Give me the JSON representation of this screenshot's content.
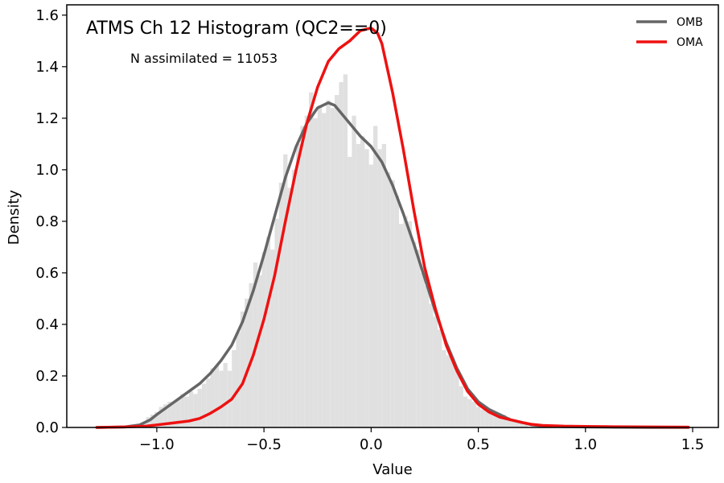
{
  "chart_data": {
    "type": "line",
    "title": "ATMS Ch 12 Histogram (QC2==0)",
    "annotation": "N assimilated = 11053",
    "xlabel": "Value",
    "ylabel": "Density",
    "xlim": [
      -1.42,
      1.62
    ],
    "ylim": [
      0,
      1.64
    ],
    "xticks": [
      -1.0,
      -0.5,
      0.0,
      0.5,
      1.0,
      1.5
    ],
    "xtick_labels": [
      "−1.0",
      "−0.5",
      "0.0",
      "0.5",
      "1.0",
      "1.5"
    ],
    "yticks": [
      0.0,
      0.2,
      0.4,
      0.6,
      0.8,
      1.0,
      1.2,
      1.4,
      1.6
    ],
    "ytick_labels": [
      "0.0",
      "0.2",
      "0.4",
      "0.6",
      "0.8",
      "1.0",
      "1.2",
      "1.4",
      "1.6"
    ],
    "grid": false,
    "legend_position": "top-right",
    "histogram": {
      "color": "#e0e0e0",
      "bin_width": 0.02,
      "bins": [
        [
          -1.06,
          0.02
        ],
        [
          -1.04,
          0.04
        ],
        [
          -1.02,
          0.05
        ],
        [
          -1.0,
          0.06
        ],
        [
          -0.98,
          0.08
        ],
        [
          -0.96,
          0.09
        ],
        [
          -0.94,
          0.1
        ],
        [
          -0.92,
          0.1
        ],
        [
          -0.9,
          0.11
        ],
        [
          -0.88,
          0.13
        ],
        [
          -0.86,
          0.12
        ],
        [
          -0.84,
          0.14
        ],
        [
          -0.82,
          0.13
        ],
        [
          -0.8,
          0.15
        ],
        [
          -0.78,
          0.17
        ],
        [
          -0.76,
          0.19
        ],
        [
          -0.74,
          0.23
        ],
        [
          -0.72,
          0.24
        ],
        [
          -0.7,
          0.22
        ],
        [
          -0.68,
          0.25
        ],
        [
          -0.66,
          0.22
        ],
        [
          -0.64,
          0.3
        ],
        [
          -0.62,
          0.37
        ],
        [
          -0.6,
          0.45
        ],
        [
          -0.58,
          0.5
        ],
        [
          -0.56,
          0.56
        ],
        [
          -0.54,
          0.64
        ],
        [
          -0.52,
          0.59
        ],
        [
          -0.5,
          0.68
        ],
        [
          -0.48,
          0.74
        ],
        [
          -0.46,
          0.69
        ],
        [
          -0.44,
          0.81
        ],
        [
          -0.42,
          0.95
        ],
        [
          -0.4,
          1.06
        ],
        [
          -0.38,
          0.93
        ],
        [
          -0.36,
          1.0
        ],
        [
          -0.34,
          1.1
        ],
        [
          -0.32,
          1.17
        ],
        [
          -0.3,
          1.21
        ],
        [
          -0.28,
          1.3
        ],
        [
          -0.26,
          1.2
        ],
        [
          -0.24,
          1.25
        ],
        [
          -0.22,
          1.22
        ],
        [
          -0.2,
          1.27
        ],
        [
          -0.18,
          1.24
        ],
        [
          -0.16,
          1.29
        ],
        [
          -0.14,
          1.34
        ],
        [
          -0.12,
          1.37
        ],
        [
          -0.1,
          1.05
        ],
        [
          -0.08,
          1.21
        ],
        [
          -0.06,
          1.1
        ],
        [
          -0.04,
          1.13
        ],
        [
          -0.02,
          1.08
        ],
        [
          0.0,
          1.02
        ],
        [
          0.02,
          1.17
        ],
        [
          0.04,
          1.08
        ],
        [
          0.06,
          1.1
        ],
        [
          0.08,
          0.99
        ],
        [
          0.1,
          0.96
        ],
        [
          0.12,
          0.9
        ],
        [
          0.14,
          0.79
        ],
        [
          0.16,
          0.82
        ],
        [
          0.18,
          0.8
        ],
        [
          0.2,
          0.72
        ],
        [
          0.22,
          0.69
        ],
        [
          0.24,
          0.6
        ],
        [
          0.26,
          0.55
        ],
        [
          0.28,
          0.48
        ],
        [
          0.3,
          0.43
        ],
        [
          0.32,
          0.38
        ],
        [
          0.34,
          0.3
        ],
        [
          0.36,
          0.28
        ],
        [
          0.38,
          0.27
        ],
        [
          0.4,
          0.22
        ],
        [
          0.42,
          0.16
        ],
        [
          0.44,
          0.12
        ],
        [
          0.46,
          0.11
        ],
        [
          0.48,
          0.1
        ],
        [
          0.5,
          0.08
        ],
        [
          0.52,
          0.07
        ],
        [
          0.54,
          0.07
        ],
        [
          0.56,
          0.06
        ],
        [
          0.58,
          0.05
        ],
        [
          0.6,
          0.04
        ],
        [
          0.62,
          0.05
        ],
        [
          0.64,
          0.04
        ],
        [
          0.66,
          0.03
        ],
        [
          0.68,
          0.02
        ],
        [
          0.7,
          0.02
        ],
        [
          0.72,
          0.01
        ]
      ]
    },
    "series": [
      {
        "name": "OMB",
        "color": "#666666",
        "points": [
          [
            -1.28,
            0.0
          ],
          [
            -1.15,
            0.002
          ],
          [
            -1.08,
            0.01
          ],
          [
            -1.03,
            0.03
          ],
          [
            -1.0,
            0.05
          ],
          [
            -0.95,
            0.08
          ],
          [
            -0.9,
            0.11
          ],
          [
            -0.85,
            0.14
          ],
          [
            -0.8,
            0.17
          ],
          [
            -0.75,
            0.21
          ],
          [
            -0.7,
            0.26
          ],
          [
            -0.65,
            0.32
          ],
          [
            -0.6,
            0.41
          ],
          [
            -0.55,
            0.53
          ],
          [
            -0.5,
            0.67
          ],
          [
            -0.45,
            0.82
          ],
          [
            -0.4,
            0.97
          ],
          [
            -0.35,
            1.09
          ],
          [
            -0.3,
            1.18
          ],
          [
            -0.25,
            1.24
          ],
          [
            -0.2,
            1.26
          ],
          [
            -0.17,
            1.25
          ],
          [
            -0.15,
            1.23
          ],
          [
            -0.1,
            1.18
          ],
          [
            -0.05,
            1.13
          ],
          [
            0.0,
            1.09
          ],
          [
            0.05,
            1.03
          ],
          [
            0.1,
            0.94
          ],
          [
            0.15,
            0.83
          ],
          [
            0.2,
            0.71
          ],
          [
            0.25,
            0.58
          ],
          [
            0.3,
            0.45
          ],
          [
            0.35,
            0.33
          ],
          [
            0.4,
            0.23
          ],
          [
            0.45,
            0.15
          ],
          [
            0.5,
            0.1
          ],
          [
            0.55,
            0.07
          ],
          [
            0.6,
            0.05
          ],
          [
            0.65,
            0.03
          ],
          [
            0.7,
            0.02
          ],
          [
            0.75,
            0.01
          ],
          [
            0.8,
            0.006
          ],
          [
            0.9,
            0.003
          ],
          [
            1.0,
            0.002
          ],
          [
            1.1,
            0.001
          ],
          [
            1.3,
            0.0
          ],
          [
            1.48,
            0.0
          ]
        ]
      },
      {
        "name": "OMA",
        "color": "#ee1111",
        "points": [
          [
            -1.28,
            0.0
          ],
          [
            -1.15,
            0.002
          ],
          [
            -1.05,
            0.005
          ],
          [
            -1.0,
            0.01
          ],
          [
            -0.95,
            0.015
          ],
          [
            -0.9,
            0.02
          ],
          [
            -0.85,
            0.025
          ],
          [
            -0.8,
            0.035
          ],
          [
            -0.75,
            0.055
          ],
          [
            -0.7,
            0.08
          ],
          [
            -0.65,
            0.11
          ],
          [
            -0.6,
            0.17
          ],
          [
            -0.55,
            0.28
          ],
          [
            -0.5,
            0.42
          ],
          [
            -0.45,
            0.59
          ],
          [
            -0.4,
            0.8
          ],
          [
            -0.35,
            1.0
          ],
          [
            -0.3,
            1.18
          ],
          [
            -0.25,
            1.32
          ],
          [
            -0.2,
            1.42
          ],
          [
            -0.15,
            1.47
          ],
          [
            -0.1,
            1.5
          ],
          [
            -0.05,
            1.54
          ],
          [
            0.0,
            1.55
          ],
          [
            0.03,
            1.53
          ],
          [
            0.05,
            1.49
          ],
          [
            0.1,
            1.3
          ],
          [
            0.15,
            1.08
          ],
          [
            0.2,
            0.84
          ],
          [
            0.25,
            0.62
          ],
          [
            0.3,
            0.46
          ],
          [
            0.35,
            0.32
          ],
          [
            0.4,
            0.22
          ],
          [
            0.45,
            0.14
          ],
          [
            0.5,
            0.09
          ],
          [
            0.55,
            0.06
          ],
          [
            0.6,
            0.04
          ],
          [
            0.65,
            0.03
          ],
          [
            0.7,
            0.02
          ],
          [
            0.75,
            0.012
          ],
          [
            0.8,
            0.008
          ],
          [
            0.9,
            0.005
          ],
          [
            1.0,
            0.004
          ],
          [
            1.1,
            0.003
          ],
          [
            1.3,
            0.002
          ],
          [
            1.48,
            0.001
          ]
        ]
      }
    ]
  }
}
